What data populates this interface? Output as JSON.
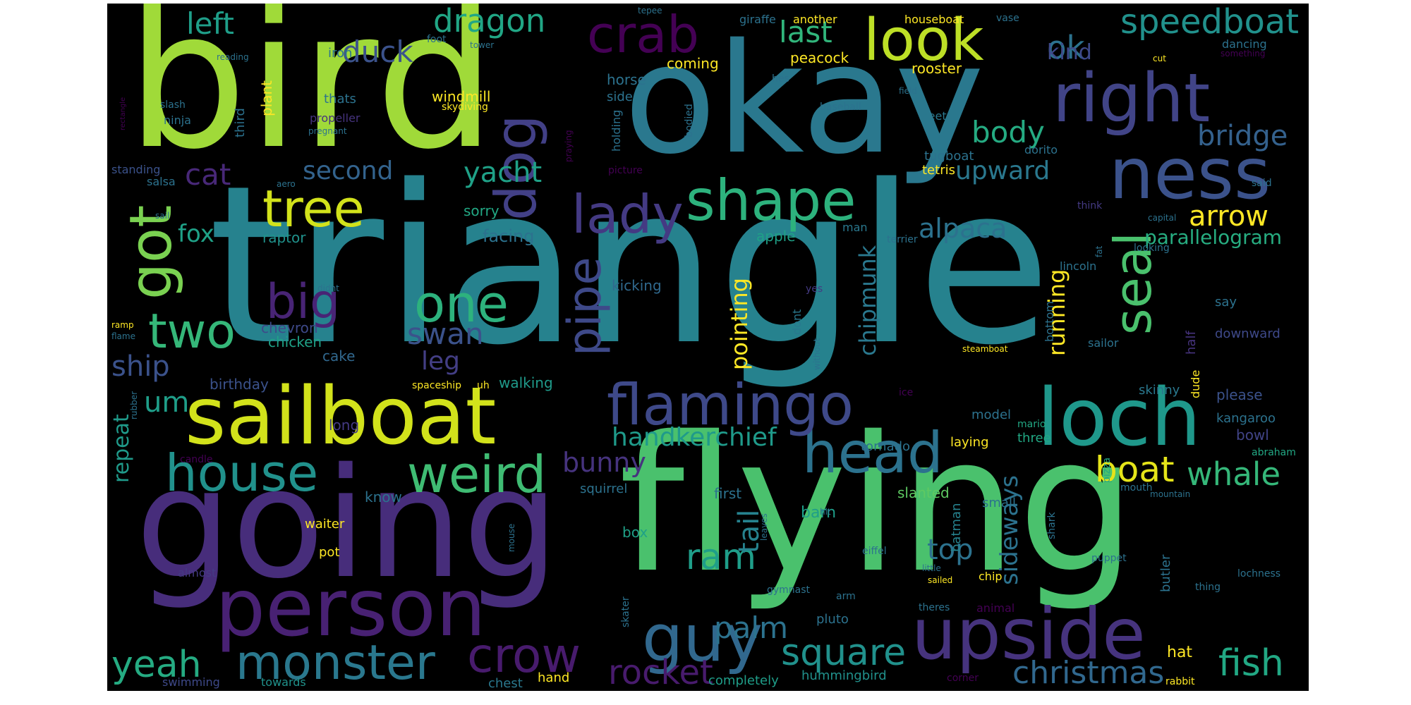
{
  "words": [
    {
      "text": "triangle",
      "color": "#26828e"
    },
    {
      "text": "bird",
      "color": "#a0da39"
    },
    {
      "text": "okay",
      "color": "#2a788e"
    },
    {
      "text": "going",
      "color": "#472d7b"
    },
    {
      "text": "flying",
      "color": "#4ac16d"
    },
    {
      "text": "sailboat",
      "color": "#d2e21b"
    },
    {
      "text": "person",
      "color": "#482173"
    },
    {
      "text": "loch",
      "color": "#1f988b"
    },
    {
      "text": "ness",
      "color": "#3b528b"
    },
    {
      "text": "right",
      "color": "#414487"
    },
    {
      "text": "look",
      "color": "#bddf26"
    },
    {
      "text": "upside",
      "color": "#46337e"
    },
    {
      "text": "guy",
      "color": "#31688e"
    },
    {
      "text": "head",
      "color": "#2c728e"
    },
    {
      "text": "flamingo",
      "color": "#3e4989"
    },
    {
      "text": "shape",
      "color": "#2db27d"
    },
    {
      "text": "lady",
      "color": "#443a83"
    },
    {
      "text": "dog",
      "color": "#424086"
    },
    {
      "text": "got",
      "color": "#7ad151"
    },
    {
      "text": "crab",
      "color": "#440154"
    },
    {
      "text": "house",
      "color": "#21918c"
    },
    {
      "text": "weird",
      "color": "#3fbc73"
    },
    {
      "text": "monster",
      "color": "#2a788e"
    },
    {
      "text": "crow",
      "color": "#481b6d"
    },
    {
      "text": "tree",
      "color": "#d2e21b"
    },
    {
      "text": "one",
      "color": "#2db27d"
    },
    {
      "text": "two",
      "color": "#35b779"
    },
    {
      "text": "big",
      "color": "#482475"
    },
    {
      "text": "seal",
      "color": "#4ac16d"
    },
    {
      "text": "pipe",
      "color": "#3e4989"
    },
    {
      "text": "square",
      "color": "#21918c"
    },
    {
      "text": "rocket",
      "color": "#481b6d"
    },
    {
      "text": "fish",
      "color": "#22a884"
    },
    {
      "text": "dragon",
      "color": "#21a685"
    },
    {
      "text": "speedboat",
      "color": "#21918c"
    },
    {
      "text": "ram",
      "color": "#1f9e89"
    },
    {
      "text": "boat",
      "color": "#e5e419"
    },
    {
      "text": "whale",
      "color": "#35b779"
    },
    {
      "text": "yeah",
      "color": "#25ab82"
    },
    {
      "text": "palm",
      "color": "#2c728e"
    },
    {
      "text": "christmas",
      "color": "#31688e"
    },
    {
      "text": "left",
      "color": "#1f9e89"
    },
    {
      "text": "duck",
      "color": "#3b528b"
    },
    {
      "text": "last",
      "color": "#31b57b"
    },
    {
      "text": "ok",
      "color": "#2c728e"
    },
    {
      "text": "kind",
      "color": "#3e4989"
    },
    {
      "text": "body",
      "color": "#25ab82"
    },
    {
      "text": "bridge",
      "color": "#34618d"
    },
    {
      "text": "yacht",
      "color": "#1fa187"
    },
    {
      "text": "second",
      "color": "#33638d"
    },
    {
      "text": "upward",
      "color": "#2a788e"
    },
    {
      "text": "cat",
      "color": "#482878"
    },
    {
      "text": "fox",
      "color": "#1fa187"
    },
    {
      "text": "alpaca",
      "color": "#2c728e"
    },
    {
      "text": "arrow",
      "color": "#fde725"
    },
    {
      "text": "parallelogram",
      "color": "#27ad81"
    },
    {
      "text": "handkerchief",
      "color": "#1f9a8a"
    },
    {
      "text": "bunny",
      "color": "#46337e"
    },
    {
      "text": "swan",
      "color": "#3b528b"
    },
    {
      "text": "leg",
      "color": "#433e85"
    },
    {
      "text": "ship",
      "color": "#3b528b"
    },
    {
      "text": "um",
      "color": "#1f9e89"
    },
    {
      "text": "top",
      "color": "#2c728e"
    },
    {
      "text": "sideways",
      "color": "#2c728e"
    },
    {
      "text": "tail",
      "color": "#26828e"
    },
    {
      "text": "running",
      "color": "#fde725"
    },
    {
      "text": "chipmunk",
      "color": "#2a788e"
    },
    {
      "text": "pointing",
      "color": "#fde725"
    },
    {
      "text": "repeat",
      "color": "#1f9a8a"
    },
    {
      "text": "facing",
      "color": "#2c728e"
    },
    {
      "text": "sorry",
      "color": "#22a884"
    },
    {
      "text": "apple",
      "color": "#1fa187"
    },
    {
      "text": "raptor",
      "color": "#20928c"
    },
    {
      "text": "kicking",
      "color": "#30698e"
    },
    {
      "text": "chevron",
      "color": "#3e4989"
    },
    {
      "text": "chicken",
      "color": "#1fa187"
    },
    {
      "text": "cake",
      "color": "#31688e"
    },
    {
      "text": "birthday",
      "color": "#3b528b"
    },
    {
      "text": "walking",
      "color": "#1f9a8a"
    },
    {
      "text": "long",
      "color": "#443a83"
    },
    {
      "text": "waiter",
      "color": "#fde725"
    },
    {
      "text": "pot",
      "color": "#fde725"
    },
    {
      "text": "almost",
      "color": "#443a83"
    },
    {
      "text": "swimming",
      "color": "#3e4989"
    },
    {
      "text": "towards",
      "color": "#20928c"
    },
    {
      "text": "chest",
      "color": "#2a788e"
    },
    {
      "text": "hand",
      "color": "#fde725"
    },
    {
      "text": "completely",
      "color": "#1f9e89"
    },
    {
      "text": "hummingbird",
      "color": "#21918c"
    },
    {
      "text": "corner",
      "color": "#440154"
    },
    {
      "text": "rabbit",
      "color": "#fde725"
    },
    {
      "text": "hat",
      "color": "#fde725"
    },
    {
      "text": "box",
      "color": "#1fa187"
    },
    {
      "text": "barn",
      "color": "#1f9e89"
    },
    {
      "text": "squirrel",
      "color": "#2c728e"
    },
    {
      "text": "know",
      "color": "#2c728e"
    },
    {
      "text": "first",
      "color": "#2c728e"
    },
    {
      "text": "slanted",
      "color": "#5ec962"
    },
    {
      "text": "batman",
      "color": "#26828e"
    },
    {
      "text": "small",
      "color": "#2c728e"
    },
    {
      "text": "tornado",
      "color": "#2c728e"
    },
    {
      "text": "model",
      "color": "#2c728e"
    },
    {
      "text": "three",
      "color": "#22a884"
    },
    {
      "text": "laying",
      "color": "#fde725"
    },
    {
      "text": "mario",
      "color": "#22a884"
    },
    {
      "text": "pizza",
      "color": "#22a884"
    },
    {
      "text": "skinny",
      "color": "#2a788e"
    },
    {
      "text": "dude",
      "color": "#fde725"
    },
    {
      "text": "half",
      "color": "#46337e"
    },
    {
      "text": "please",
      "color": "#3b528b"
    },
    {
      "text": "kangaroo",
      "color": "#2c728e"
    },
    {
      "text": "bowl",
      "color": "#414487"
    },
    {
      "text": "abraham",
      "color": "#22a884"
    },
    {
      "text": "downward",
      "color": "#3e4989"
    },
    {
      "text": "say",
      "color": "#2c728e"
    },
    {
      "text": "lincoln",
      "color": "#2c728e"
    },
    {
      "text": "sailor",
      "color": "#2c728e"
    },
    {
      "text": "steamboat",
      "color": "#fde725"
    },
    {
      "text": "bottom",
      "color": "#2c728e"
    },
    {
      "text": "dont",
      "color": "#2a788e"
    },
    {
      "text": "yes",
      "color": "#443a83"
    },
    {
      "text": "man",
      "color": "#2a788e"
    },
    {
      "text": "terrier",
      "color": "#2c728e"
    },
    {
      "text": "looking",
      "color": "#2c728e"
    },
    {
      "text": "capital",
      "color": "#2c728e"
    },
    {
      "text": "fat",
      "color": "#2c728e"
    },
    {
      "text": "think",
      "color": "#443a83"
    },
    {
      "text": "said",
      "color": "#2c728e"
    },
    {
      "text": "picture",
      "color": "#440154"
    },
    {
      "text": "praying",
      "color": "#440154"
    },
    {
      "text": "tetris",
      "color": "#fde725"
    },
    {
      "text": "tugboat",
      "color": "#2c728e"
    },
    {
      "text": "dorito",
      "color": "#2c728e"
    },
    {
      "text": "feet",
      "color": "#2a788e"
    },
    {
      "text": "baseball",
      "color": "#2c728e"
    },
    {
      "text": "bodied",
      "color": "#2c728e"
    },
    {
      "text": "hes",
      "color": "#2c728e"
    },
    {
      "text": "field",
      "color": "#2c728e"
    },
    {
      "text": "rooster",
      "color": "#fde725"
    },
    {
      "text": "peacock",
      "color": "#fde725"
    },
    {
      "text": "coming",
      "color": "#fde725"
    },
    {
      "text": "horse",
      "color": "#2c728e"
    },
    {
      "text": "side",
      "color": "#2c728e"
    },
    {
      "text": "holding",
      "color": "#2c728e"
    },
    {
      "text": "windmill",
      "color": "#fde725"
    },
    {
      "text": "skydiving",
      "color": "#fde725"
    },
    {
      "text": "thats",
      "color": "#2c728e"
    },
    {
      "text": "plant",
      "color": "#fde725"
    },
    {
      "text": "third",
      "color": "#2c728e"
    },
    {
      "text": "ninja",
      "color": "#2c728e"
    },
    {
      "text": "propeller",
      "color": "#46337e"
    },
    {
      "text": "pregnant",
      "color": "#2c728e"
    },
    {
      "text": "slash",
      "color": "#2c728e"
    },
    {
      "text": "rectangle",
      "color": "#440154"
    },
    {
      "text": "iron",
      "color": "#2c728e"
    },
    {
      "text": "reading",
      "color": "#2c728e"
    },
    {
      "text": "foot",
      "color": "#2c728e"
    },
    {
      "text": "tower",
      "color": "#2c728e"
    },
    {
      "text": "giraffe",
      "color": "#2c728e"
    },
    {
      "text": "tepee",
      "color": "#2c728e"
    },
    {
      "text": "another",
      "color": "#fde725"
    },
    {
      "text": "houseboat",
      "color": "#fde725"
    },
    {
      "text": "vase",
      "color": "#2c728e"
    },
    {
      "text": "dancing",
      "color": "#2c728e"
    },
    {
      "text": "cut",
      "color": "#fde725"
    },
    {
      "text": "something",
      "color": "#440154"
    },
    {
      "text": "standing",
      "color": "#3b528b"
    },
    {
      "text": "salsa",
      "color": "#2c728e"
    },
    {
      "text": "aero",
      "color": "#2c728e"
    },
    {
      "text": "sail",
      "color": "#2c728e"
    },
    {
      "text": "didnt",
      "color": "#2c728e"
    },
    {
      "text": "ramp",
      "color": "#fde725"
    },
    {
      "text": "flame",
      "color": "#2c728e"
    },
    {
      "text": "rubber",
      "color": "#2c728e"
    },
    {
      "text": "candle",
      "color": "#440154"
    },
    {
      "text": "spaceship",
      "color": "#fde725"
    },
    {
      "text": "uh",
      "color": "#fde725"
    },
    {
      "text": "ice",
      "color": "#440154"
    },
    {
      "text": "without",
      "color": "#2c728e"
    },
    {
      "text": "mouse",
      "color": "#2c728e"
    },
    {
      "text": "leaves",
      "color": "#2c728e"
    },
    {
      "text": "hit",
      "color": "#2c728e"
    },
    {
      "text": "mountain",
      "color": "#2c728e"
    },
    {
      "text": "mouth",
      "color": "#2c728e"
    },
    {
      "text": "shark",
      "color": "#2c728e"
    },
    {
      "text": "eiffel",
      "color": "#2c728e"
    },
    {
      "text": "little",
      "color": "#2c728e"
    },
    {
      "text": "sailed",
      "color": "#fde725"
    },
    {
      "text": "chip",
      "color": "#fde725"
    },
    {
      "text": "puppet",
      "color": "#2c728e"
    },
    {
      "text": "butler",
      "color": "#2c728e"
    },
    {
      "text": "lochness",
      "color": "#2c728e"
    },
    {
      "text": "thing",
      "color": "#2c728e"
    },
    {
      "text": "gymnast",
      "color": "#2c728e"
    },
    {
      "text": "skater",
      "color": "#2c728e"
    },
    {
      "text": "arm",
      "color": "#2c728e"
    },
    {
      "text": "pluto",
      "color": "#2c728e"
    },
    {
      "text": "theres",
      "color": "#2c728e"
    },
    {
      "text": "animal",
      "color": "#440154"
    }
  ]
}
